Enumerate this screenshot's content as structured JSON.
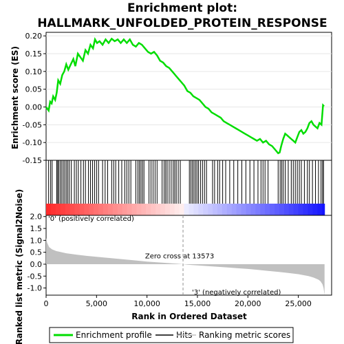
{
  "chart_data": {
    "type": "line",
    "title_line1": "Enrichment plot:",
    "title_line2": "HALLMARK_UNFOLDED_PROTEIN_RESPONSE",
    "xlabel": "Rank in Ordered Dataset",
    "es_panel": {
      "ylabel": "Enrichment score (ES)",
      "ylim": [
        -0.15,
        0.21
      ],
      "yticks": [
        "0.20",
        "0.15",
        "0.10",
        "0.05",
        "0.00",
        "-0.05",
        "-0.10",
        "-0.15"
      ],
      "ytick_values": [
        0.2,
        0.15,
        0.1,
        0.05,
        0.0,
        -0.05,
        -0.1,
        -0.15
      ],
      "series": {
        "name": "Enrichment profile",
        "color": "#00dd00",
        "x": [
          0,
          250,
          400,
          550,
          700,
          900,
          1050,
          1200,
          1400,
          1600,
          1800,
          2000,
          2200,
          2450,
          2700,
          2900,
          3150,
          3400,
          3650,
          3900,
          4150,
          4400,
          4650,
          4850,
          5050,
          5300,
          5600,
          5900,
          6200,
          6500,
          6800,
          7100,
          7400,
          7700,
          8000,
          8300,
          8600,
          8900,
          9200,
          9500,
          9800,
          10100,
          10400,
          10700,
          11000,
          11300,
          11600,
          11900,
          12200,
          12500,
          12800,
          13100,
          13400,
          13700,
          14000,
          14300,
          14600,
          14900,
          15200,
          15500,
          15800,
          16100,
          16400,
          16700,
          17000,
          17300,
          17600,
          17900,
          18200,
          18500,
          18800,
          19100,
          19400,
          19700,
          20000,
          20300,
          20600,
          20900,
          21200,
          21500,
          21800,
          22100,
          22400,
          22700,
          23000,
          23150,
          23300,
          23500,
          23700,
          23900,
          24100,
          24300,
          24500,
          24700,
          24900,
          25100,
          25300,
          25500,
          25700,
          25900,
          26100,
          26300,
          26500,
          26700,
          26900,
          27100,
          27300,
          27450,
          27550
        ],
        "y": [
          0.0,
          -0.01,
          0.015,
          0.01,
          0.03,
          0.02,
          0.04,
          0.075,
          0.065,
          0.09,
          0.1,
          0.12,
          0.105,
          0.12,
          0.135,
          0.115,
          0.15,
          0.14,
          0.13,
          0.16,
          0.15,
          0.175,
          0.165,
          0.19,
          0.18,
          0.185,
          0.175,
          0.19,
          0.18,
          0.192,
          0.185,
          0.19,
          0.18,
          0.19,
          0.18,
          0.19,
          0.175,
          0.17,
          0.18,
          0.175,
          0.165,
          0.155,
          0.15,
          0.155,
          0.145,
          0.13,
          0.125,
          0.115,
          0.11,
          0.1,
          0.09,
          0.08,
          0.07,
          0.06,
          0.045,
          0.04,
          0.03,
          0.025,
          0.02,
          0.01,
          0.0,
          -0.005,
          -0.015,
          -0.02,
          -0.025,
          -0.03,
          -0.04,
          -0.045,
          -0.05,
          -0.055,
          -0.06,
          -0.065,
          -0.07,
          -0.075,
          -0.08,
          -0.085,
          -0.09,
          -0.095,
          -0.09,
          -0.1,
          -0.095,
          -0.105,
          -0.11,
          -0.12,
          -0.13,
          -0.128,
          -0.11,
          -0.09,
          -0.075,
          -0.08,
          -0.085,
          -0.09,
          -0.095,
          -0.1,
          -0.085,
          -0.07,
          -0.065,
          -0.075,
          -0.07,
          -0.06,
          -0.045,
          -0.04,
          -0.05,
          -0.055,
          -0.06,
          -0.045,
          -0.05,
          0.005,
          0.002
        ]
      }
    },
    "hits": {
      "name": "Hits",
      "positions": [
        250,
        450,
        600,
        1050,
        1150,
        1250,
        1400,
        1550,
        1700,
        1850,
        2000,
        2150,
        2300,
        2500,
        2800,
        3000,
        3200,
        3450,
        3700,
        3900,
        4200,
        4400,
        4600,
        4800,
        5000,
        5200,
        5600,
        5850,
        6100,
        6500,
        6700,
        6900,
        7200,
        7500,
        7800,
        8000,
        8200,
        8400,
        8900,
        9100,
        9250,
        9400,
        9550,
        9700,
        10200,
        10400,
        10600,
        10800,
        11000,
        11500,
        11700,
        11850,
        12000,
        12200,
        12400,
        12600,
        12750,
        12900,
        13100,
        13300,
        14200,
        14350,
        14500,
        14650,
        14800,
        14950,
        15100,
        15300,
        15500,
        15700,
        15900,
        16500,
        16700,
        17000,
        17200,
        17500,
        17800,
        18200,
        18600,
        19000,
        19400,
        19800,
        20200,
        20600,
        21000,
        21300,
        21500,
        21700,
        22000,
        23000,
        23200,
        23350,
        23500,
        23700,
        24000,
        24300,
        24500,
        24700,
        24900,
        25100,
        25300,
        25600,
        25900,
        26100,
        26400,
        26700,
        27000,
        27250,
        27400,
        27500
      ]
    },
    "heatmap_bar": {
      "label_pos": "'0' (positively correlated)",
      "label_neg": "'3' (negatively correlated)",
      "color_pos": "#ff0000",
      "color_neg": "#0000ff"
    },
    "metric_panel": {
      "name": "Ranking metric scores",
      "ylabel": "Ranked list metric (Signal2Noise)",
      "ylim": [
        -1.3,
        2.05
      ],
      "yticks": [
        "2.0",
        "1.5",
        "1.0",
        "0.5",
        "0.0",
        "-0.5",
        "-1.0"
      ],
      "ytick_values": [
        2.0,
        1.5,
        1.0,
        0.5,
        0.0,
        -0.5,
        -1.0
      ],
      "zero_cross_label": "Zero cross at 13573",
      "zero_cross": 13573,
      "x": [
        0,
        100,
        300,
        600,
        1000,
        2000,
        3000,
        4000,
        5000,
        6000,
        7000,
        8000,
        9000,
        10000,
        11000,
        12000,
        13000,
        13573,
        14000,
        15000,
        16000,
        17000,
        18000,
        19000,
        20000,
        21000,
        22000,
        23000,
        24000,
        25000,
        25500,
        26000,
        26500,
        27000,
        27200,
        27400,
        27500,
        27600
      ],
      "y": [
        1.1,
        0.9,
        0.72,
        0.62,
        0.55,
        0.46,
        0.4,
        0.35,
        0.31,
        0.27,
        0.23,
        0.19,
        0.15,
        0.11,
        0.08,
        0.05,
        0.02,
        0.0,
        -0.02,
        -0.05,
        -0.08,
        -0.11,
        -0.14,
        -0.17,
        -0.2,
        -0.24,
        -0.28,
        -0.32,
        -0.37,
        -0.42,
        -0.46,
        -0.5,
        -0.56,
        -0.65,
        -0.72,
        -0.85,
        -1.0,
        -1.3
      ]
    },
    "xaxis": {
      "xlim": [
        0,
        28300
      ],
      "ticks": [
        "0",
        "5,000",
        "10,000",
        "15,000",
        "20,000",
        "25,000"
      ],
      "tick_values": [
        0,
        5000,
        10000,
        15000,
        20000,
        25000
      ]
    },
    "legend": [
      {
        "label": "Enrichment profile",
        "color": "#00dd00"
      },
      {
        "label": "Hits",
        "color": "#000000"
      },
      {
        "label": "Ranking metric scores",
        "color": "#c0c0c0"
      }
    ]
  }
}
